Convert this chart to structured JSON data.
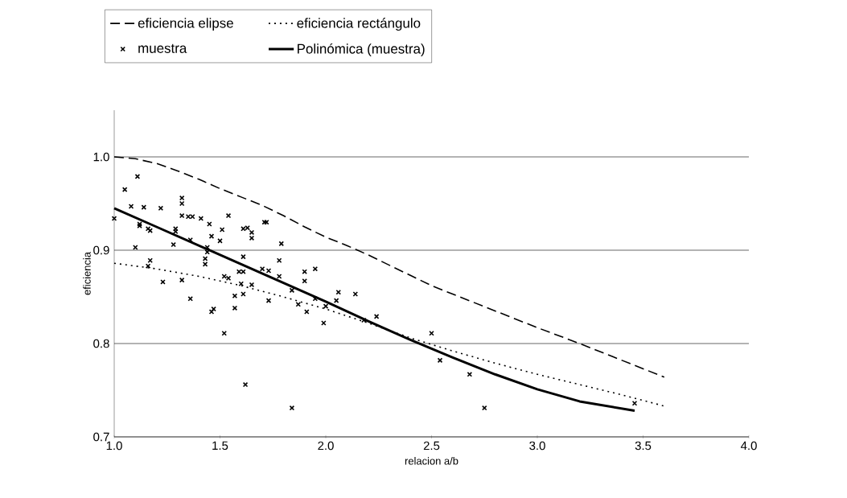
{
  "chart_data": {
    "type": "scatter",
    "xlabel": "relacion a/b",
    "ylabel": "eficiencia",
    "xlim": [
      1,
      4
    ],
    "ylim": [
      0.7,
      1.05
    ],
    "xticks": [
      {
        "value": 1,
        "label": "1.0"
      },
      1.5,
      {
        "value": 2,
        "label": "2.0"
      },
      2.5,
      {
        "value": 3,
        "label": "3.0"
      },
      3.5,
      {
        "value": 4,
        "label": "4.0"
      }
    ],
    "yticks": [
      0.7,
      0.8,
      0.9,
      {
        "value": 1,
        "label": "1.0"
      }
    ],
    "grid": "y",
    "legend": "top",
    "series": [
      {
        "name": "eficiencia elipse",
        "type": "line",
        "line_style": "dashed",
        "marker": "none",
        "color": "#000000",
        "x": [
          1.0,
          1.1,
          1.2,
          1.3,
          1.4,
          1.5,
          1.6,
          1.7,
          1.8,
          1.9,
          2.0,
          2.1,
          2.2,
          2.3,
          2.4,
          2.5,
          2.6,
          2.8,
          3.0,
          3.2,
          3.4,
          3.6
        ],
        "values": [
          1.0,
          0.998,
          0.993,
          0.985,
          0.976,
          0.966,
          0.957,
          0.948,
          0.937,
          0.925,
          0.914,
          0.905,
          0.895,
          0.884,
          0.873,
          0.862,
          0.853,
          0.835,
          0.817,
          0.8,
          0.782,
          0.764
        ]
      },
      {
        "name": "eficiencia rectángulo",
        "type": "line",
        "line_style": "dotted",
        "marker": "none",
        "color": "#000000",
        "x": [
          1.0,
          1.2,
          1.4,
          1.6,
          1.8,
          2.0,
          2.2,
          2.4,
          2.6,
          2.8,
          3.0,
          3.2,
          3.4,
          3.6
        ],
        "values": [
          0.886,
          0.88,
          0.872,
          0.862,
          0.85,
          0.837,
          0.822,
          0.806,
          0.792,
          0.779,
          0.767,
          0.756,
          0.745,
          0.733
        ]
      },
      {
        "name": "muestra",
        "marker": "cross",
        "color": "#000000",
        "x": [
          1.0,
          1.05,
          1.11,
          1.08,
          1.14,
          1.22,
          1.32,
          1.32,
          1.32,
          1.35,
          1.37,
          1.41,
          1.45,
          1.54,
          1.12,
          1.12,
          1.16,
          1.17,
          1.29,
          1.29,
          1.28,
          1.1,
          1.36,
          1.46,
          1.44,
          1.44,
          1.5,
          1.51,
          1.61,
          1.63,
          1.65,
          1.65,
          1.71,
          1.43,
          1.43,
          1.17,
          1.16,
          1.61,
          1.23,
          1.32,
          1.36,
          1.46,
          1.47,
          1.52,
          1.52,
          1.54,
          1.57,
          1.57,
          1.61,
          1.6,
          1.65,
          1.59,
          1.61,
          1.72,
          1.79,
          1.78,
          1.7,
          1.73,
          1.78,
          1.73,
          1.84,
          1.87,
          1.9,
          1.9,
          1.95,
          1.91,
          1.95,
          1.99,
          2.0,
          2.06,
          2.05,
          2.14,
          2.18,
          2.24,
          2.5,
          2.54,
          1.62,
          1.84,
          2.68,
          2.75,
          3.46
        ],
        "values": [
          0.934,
          0.965,
          0.979,
          0.947,
          0.946,
          0.945,
          0.956,
          0.95,
          0.937,
          0.936,
          0.936,
          0.934,
          0.928,
          0.937,
          0.928,
          0.926,
          0.923,
          0.921,
          0.923,
          0.92,
          0.906,
          0.903,
          0.911,
          0.915,
          0.903,
          0.898,
          0.91,
          0.922,
          0.923,
          0.924,
          0.919,
          0.913,
          0.93,
          0.891,
          0.885,
          0.889,
          0.883,
          0.893,
          0.866,
          0.868,
          0.848,
          0.834,
          0.837,
          0.811,
          0.872,
          0.87,
          0.838,
          0.851,
          0.853,
          0.864,
          0.863,
          0.877,
          0.877,
          0.93,
          0.907,
          0.889,
          0.88,
          0.878,
          0.872,
          0.846,
          0.857,
          0.842,
          0.877,
          0.867,
          0.88,
          0.834,
          0.848,
          0.822,
          0.84,
          0.855,
          0.846,
          0.853,
          0.825,
          0.829,
          0.811,
          0.782,
          0.756,
          0.731,
          0.767,
          0.731,
          0.736
        ]
      },
      {
        "name": "Polinómica (muestra)",
        "type": "line",
        "line_style": "solid",
        "marker": "none",
        "color": "#000000",
        "x": [
          1.0,
          1.2,
          1.4,
          1.6,
          1.8,
          2.0,
          2.2,
          2.4,
          2.6,
          2.8,
          3.0,
          3.2,
          3.46
        ],
        "values": [
          0.945,
          0.925,
          0.905,
          0.885,
          0.865,
          0.845,
          0.824,
          0.804,
          0.785,
          0.767,
          0.751,
          0.738,
          0.728
        ]
      }
    ]
  }
}
